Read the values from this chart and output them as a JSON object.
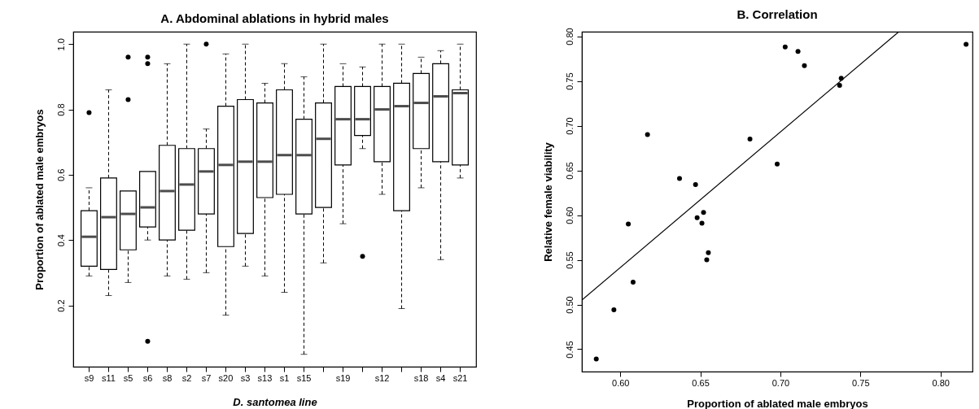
{
  "chart_data": [
    {
      "type": "box",
      "title": "A. Abdominal ablations in hybrid males",
      "xlabel": "D. santomea line",
      "ylabel": "Proportion of ablated male embryos",
      "categories": [
        "s9",
        "s11",
        "s5",
        "s6",
        "s8",
        "s2",
        "s7",
        "s20",
        "s3",
        "s13",
        "s1",
        "s15",
        null,
        "s19",
        null,
        "s12",
        null,
        "s18",
        "s4",
        "s21"
      ],
      "boxes": [
        {
          "low": 0.29,
          "q1": 0.32,
          "median": 0.41,
          "q3": 0.49,
          "high": 0.56,
          "outliers": [
            0.79
          ]
        },
        {
          "low": 0.23,
          "q1": 0.31,
          "median": 0.47,
          "q3": 0.59,
          "high": 0.86
        },
        {
          "low": 0.27,
          "q1": 0.37,
          "median": 0.48,
          "q3": 0.55,
          "high": 0.55,
          "outliers": [
            0.96,
            0.83
          ]
        },
        {
          "low": 0.4,
          "q1": 0.44,
          "median": 0.5,
          "q3": 0.61,
          "high": 0.61,
          "outliers": [
            0.96,
            0.94,
            0.09
          ]
        },
        {
          "low": 0.29,
          "q1": 0.4,
          "median": 0.55,
          "q3": 0.69,
          "high": 0.94
        },
        {
          "low": 0.28,
          "q1": 0.43,
          "median": 0.57,
          "q3": 0.68,
          "high": 1.0
        },
        {
          "low": 0.3,
          "q1": 0.48,
          "median": 0.61,
          "q3": 0.68,
          "high": 0.74,
          "outliers": [
            1.0
          ]
        },
        {
          "low": 0.17,
          "q1": 0.38,
          "median": 0.63,
          "q3": 0.81,
          "high": 0.97
        },
        {
          "low": 0.32,
          "q1": 0.42,
          "median": 0.64,
          "q3": 0.83,
          "high": 1.0
        },
        {
          "low": 0.29,
          "q1": 0.53,
          "median": 0.64,
          "q3": 0.82,
          "high": 0.88
        },
        {
          "low": 0.24,
          "q1": 0.54,
          "median": 0.66,
          "q3": 0.86,
          "high": 0.94
        },
        {
          "low": 0.05,
          "q1": 0.48,
          "median": 0.66,
          "q3": 0.77,
          "high": 0.9
        },
        {
          "low": 0.33,
          "q1": 0.5,
          "median": 0.71,
          "q3": 0.82,
          "high": 1.0
        },
        {
          "low": 0.45,
          "q1": 0.63,
          "median": 0.77,
          "q3": 0.87,
          "high": 0.94
        },
        {
          "low": 0.68,
          "q1": 0.72,
          "median": 0.77,
          "q3": 0.87,
          "high": 0.93,
          "outliers": [
            0.35
          ]
        },
        {
          "low": 0.54,
          "q1": 0.64,
          "median": 0.8,
          "q3": 0.87,
          "high": 1.0
        },
        {
          "low": 0.19,
          "q1": 0.49,
          "median": 0.81,
          "q3": 0.88,
          "high": 1.0
        },
        {
          "low": 0.56,
          "q1": 0.68,
          "median": 0.82,
          "q3": 0.91,
          "high": 0.96
        },
        {
          "low": 0.34,
          "q1": 0.64,
          "median": 0.84,
          "q3": 0.94,
          "high": 0.98
        },
        {
          "low": 0.59,
          "q1": 0.63,
          "median": 0.85,
          "q3": 0.86,
          "high": 1.0
        }
      ],
      "ylim": [
        0.012,
        1.038
      ],
      "yticks": [
        {
          "value": 0.2,
          "label": "0.2"
        },
        {
          "value": 0.4,
          "label": "0.4"
        },
        {
          "value": 0.6,
          "label": "0.6"
        },
        {
          "value": 0.8,
          "label": "0.8"
        },
        {
          "value": 1,
          "label": "1.0"
        }
      ]
    },
    {
      "type": "scatter",
      "title": "B. Correlation",
      "xlabel": "Proportion of ablated male embryos",
      "ylabel": "Relative female viability",
      "series": [
        {
          "type": "scatter",
          "marker": "circle",
          "color": "#000000",
          "x": [
            0.585,
            0.596,
            0.605,
            0.608,
            0.617,
            0.637,
            0.647,
            0.648,
            0.651,
            0.652,
            0.654,
            0.655,
            0.681,
            0.698,
            0.703,
            0.711,
            0.715,
            0.737,
            0.738,
            0.816
          ],
          "values": [
            0.439,
            0.494,
            0.59,
            0.525,
            0.69,
            0.641,
            0.634,
            0.597,
            0.591,
            0.603,
            0.55,
            0.558,
            0.685,
            0.657,
            0.788,
            0.783,
            0.767,
            0.745,
            0.753,
            0.791
          ]
        },
        {
          "type": "line",
          "color": "#000000",
          "x": [
            0.576,
            0.774
          ],
          "values": [
            0.505,
            0.805
          ]
        }
      ],
      "xlim": [
        0.576,
        0.82
      ],
      "xticks": [
        {
          "value": 0.6,
          "label": "0.60"
        },
        {
          "value": 0.65,
          "label": "0.65"
        },
        {
          "value": 0.7,
          "label": "0.70"
        },
        {
          "value": 0.75,
          "label": "0.75"
        },
        {
          "value": 0.8,
          "label": "0.80"
        }
      ],
      "ylim": [
        0.425,
        0.805
      ],
      "yticks": [
        {
          "value": 0.45,
          "label": "0.45"
        },
        {
          "value": 0.5,
          "label": "0.50"
        },
        {
          "value": 0.55,
          "label": "0.55"
        },
        {
          "value": 0.6,
          "label": "0.60"
        },
        {
          "value": 0.65,
          "label": "0.65"
        },
        {
          "value": 0.7,
          "label": "0.70"
        },
        {
          "value": 0.75,
          "label": "0.75"
        },
        {
          "value": 0.8,
          "label": "0.80"
        }
      ]
    }
  ]
}
